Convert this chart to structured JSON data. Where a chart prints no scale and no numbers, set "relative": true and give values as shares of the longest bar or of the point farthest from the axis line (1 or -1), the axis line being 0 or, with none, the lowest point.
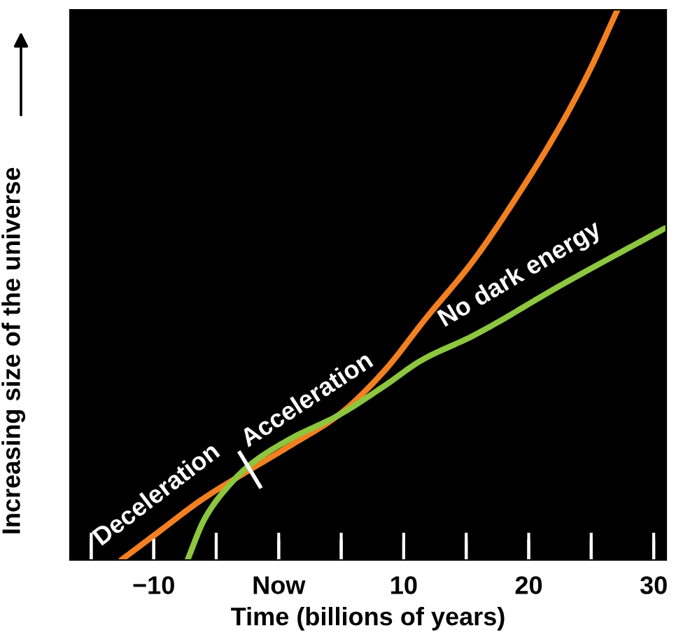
{
  "chart_data": {
    "type": "line",
    "xlabel": "Time (billions of years)",
    "ylabel": "Increasing size of the universe",
    "relative": true,
    "xlim": [
      -16.7,
      31
    ],
    "xticks": [
      {
        "value": -15,
        "label": null
      },
      -10,
      {
        "value": -5,
        "label": null
      },
      {
        "value": 0,
        "label": "Now"
      },
      {
        "value": 5,
        "label": null
      },
      10,
      {
        "value": 15,
        "label": null
      },
      20,
      {
        "value": 25,
        "label": null
      },
      30
    ],
    "series": [
      {
        "color": "#f28021",
        "x": [
          -12.6,
          -9.9,
          -6.2,
          -2.6,
          1.0,
          4.7,
          8.3,
          11.8,
          15.5,
          19.1,
          22.7,
          24.9,
          27.1
        ],
        "values": [
          0,
          0.046,
          0.109,
          0.16,
          0.209,
          0.262,
          0.34,
          0.44,
          0.542,
          0.662,
          0.796,
          0.891,
          1
        ]
      },
      {
        "color": "#8dc63f",
        "x": [
          -7.3,
          -5.9,
          -4.0,
          -2.3,
          1.0,
          4.7,
          8.3,
          11.5,
          15.5,
          22.7,
          30.9
        ],
        "values": [
          0,
          0.076,
          0.135,
          0.173,
          0.221,
          0.262,
          0.314,
          0.364,
          0.407,
          0.501,
          0.603
        ]
      }
    ],
    "annotations": [
      {
        "text": "Deceleration",
        "x": -8.3,
        "y": 0.075
      },
      {
        "text": "Acceleration",
        "x": 3.6,
        "y": 0.245
      },
      {
        "text": "No dark energy",
        "x": 20.5,
        "y": 0.472
      }
    ],
    "grid": false,
    "legend": false,
    "line_style": "solid",
    "marker": "none"
  }
}
